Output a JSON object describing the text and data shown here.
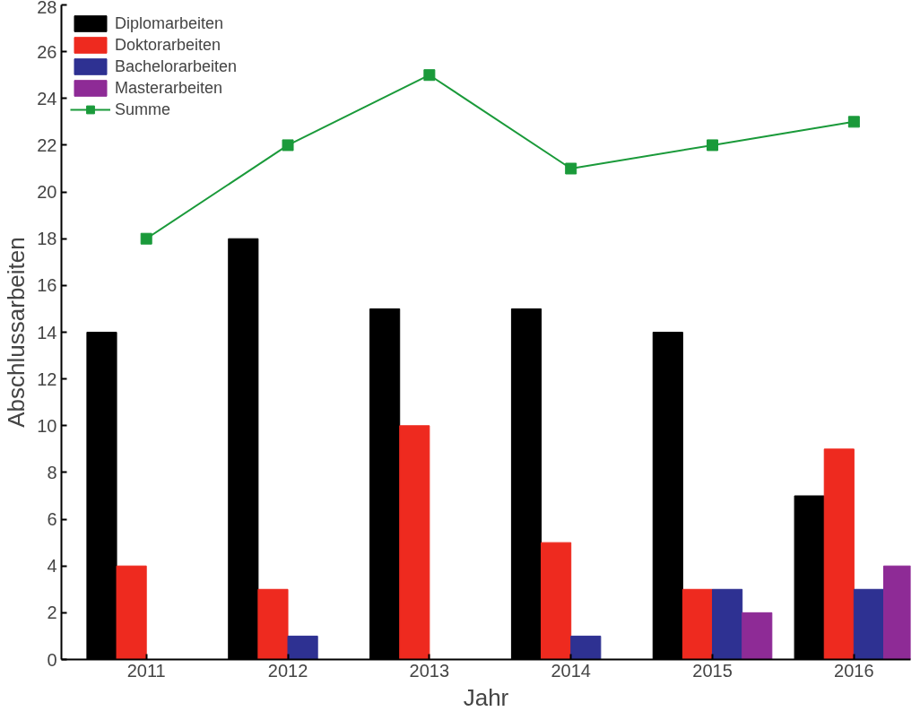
{
  "chart_data": {
    "type": "bar",
    "xlabel": "Jahr",
    "ylabel": "Abschlussarbeiten",
    "categories": [
      "2011",
      "2012",
      "2013",
      "2014",
      "2015",
      "2016"
    ],
    "series": [
      {
        "name": "Diplomarbeiten",
        "color": "#000000",
        "values": [
          14,
          18,
          15,
          15,
          14,
          7
        ]
      },
      {
        "name": "Doktorarbeiten",
        "color": "#ee2a1f",
        "values": [
          4,
          3,
          10,
          5,
          3,
          9
        ]
      },
      {
        "name": "Bachelorarbeiten",
        "color": "#2e3192",
        "values": [
          0,
          1,
          0,
          1,
          3,
          3
        ]
      },
      {
        "name": "Masterarbeiten",
        "color": "#8e2b96",
        "values": [
          0,
          0,
          0,
          0,
          2,
          4
        ]
      },
      {
        "name": "Summe",
        "type": "line",
        "color": "#1a9a3a",
        "marker": "square",
        "values": [
          18,
          22,
          25,
          21,
          22,
          23
        ]
      }
    ],
    "ylim": [
      0,
      28
    ],
    "yticks": [
      0,
      2,
      4,
      6,
      8,
      10,
      12,
      14,
      16,
      18,
      20,
      22,
      24,
      26,
      28
    ],
    "grid": false,
    "legend": "top left"
  }
}
